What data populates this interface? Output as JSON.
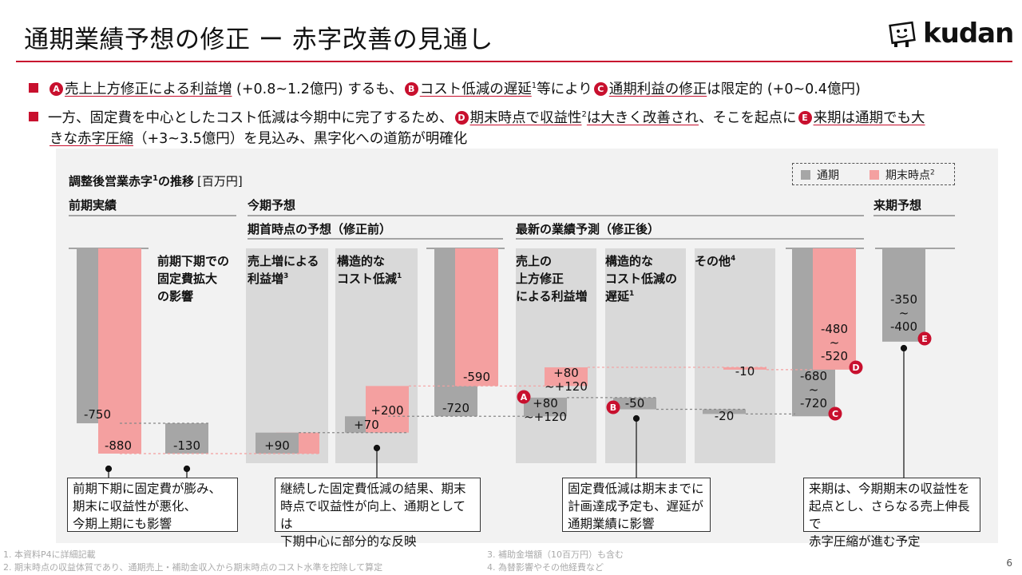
{
  "title": "通期業績予想の修正 ー 赤字改善の見通し",
  "logo": {
    "text": "kudan"
  },
  "bullets": [
    {
      "marker_a": "A",
      "part1": "売上上方修正による利益増",
      "part2": " (+0.8~1.2億円) するも、",
      "marker_b": "B",
      "part3": "コスト低減の遅延",
      "sup1": "1",
      "part4": "等により",
      "marker_c": "C",
      "part5": "通期利益の修正",
      "part6": "は限定的 (+0~0.4億円)"
    },
    {
      "part1": "一方、固定費を中心としたコスト低減は今期中に完了するため、",
      "marker_d": "D",
      "part2": "期末時点で収益性",
      "sup2": "2",
      "part3": "は大きく改善され",
      "part4": "、そこを起点に",
      "marker_e": "E",
      "part5": "来期は通期でも大",
      "part6": "きな赤字圧縮",
      "part7": "（+3~3.5億円）を見込み、黒字化への道筋が明確化"
    }
  ],
  "legend": {
    "full_year": "通期",
    "period_end": "期末時点",
    "period_end_sup": "2"
  },
  "colors": {
    "gray": "#a6a6a6",
    "pink": "#f4a0a0",
    "red": "#c8102e",
    "band": "#d9d9d9",
    "bg": "#f2f2f2"
  },
  "chart_data": {
    "type": "waterfall",
    "title": "調整後営業赤字",
    "title_sup": "1",
    "title_suffix": "の推移",
    "unit": "[百万円]",
    "ylim": [
      -900,
      0
    ],
    "sections": {
      "prev_actual": "前期実績",
      "current_forecast": "今期予想",
      "initial_forecast": "期首時点の予想（修正前）",
      "latest_forecast": "最新の業績予測（修正後）",
      "next_forecast": "来期予想"
    },
    "step_labels": {
      "fixed_cost": "前期下期での固定費拡大の影響",
      "sales_increase": "売上増による利益増",
      "sales_increase_sup": "3",
      "structural": "構造的なコスト低減",
      "structural_sup": "1",
      "upward": "売上の上方修正による利益増",
      "delay": "構造的なコスト低減の遅延",
      "delay_sup": "1",
      "other": "その他",
      "other_sup": "4"
    },
    "bars": [
      {
        "name": "prev-full-year",
        "series": "通期",
        "from": 0,
        "to": -750,
        "label": "-750"
      },
      {
        "name": "prev-period-end",
        "series": "期末時点",
        "from": 0,
        "to": -880,
        "label": "-880"
      },
      {
        "name": "fixed-cost-impact",
        "series": "通期",
        "from": -750,
        "to": -880,
        "label": "-130"
      },
      {
        "name": "sales-increase-pink",
        "series": "期末時点",
        "from": -880,
        "to": -790,
        "label": ""
      },
      {
        "name": "sales-increase-gray",
        "series": "通期",
        "from": -880,
        "to": -790,
        "label": "+90"
      },
      {
        "name": "structural-gray",
        "series": "通期",
        "from": -790,
        "to": -720,
        "label": "+70"
      },
      {
        "name": "structural-pink",
        "series": "期末時点",
        "from": -790,
        "to": -590,
        "label": "+200"
      },
      {
        "name": "initial-full-year",
        "series": "通期",
        "from": 0,
        "to": -720,
        "label": "-720"
      },
      {
        "name": "initial-period-end",
        "series": "期末時点",
        "from": 0,
        "to": -590,
        "label": "-590"
      },
      {
        "name": "upward-gray",
        "series": "通期",
        "from": -720,
        "to": -640,
        "label": "+80\n~+120"
      },
      {
        "name": "upward-pink",
        "series": "期末時点",
        "from": -590,
        "to": -510,
        "label": "+80\n~+120"
      },
      {
        "name": "delay-gray",
        "series": "通期",
        "from": -640,
        "to": -690,
        "label": "-50"
      },
      {
        "name": "other-gray",
        "series": "通期",
        "from": -690,
        "to": -710,
        "label": "-20"
      },
      {
        "name": "other-pink",
        "series": "期末時点",
        "from": -510,
        "to": -520,
        "label": "-10"
      },
      {
        "name": "latest-full-year",
        "series": "通期",
        "from": 0,
        "to": -720,
        "label": "-680\n~\n-720"
      },
      {
        "name": "latest-period-end",
        "series": "期末時点",
        "from": 0,
        "to": -520,
        "label": "-480\n~\n-520"
      },
      {
        "name": "next-full-year",
        "series": "通期",
        "from": 0,
        "to": -400,
        "label": "-350\n~\n-400"
      }
    ],
    "markers": {
      "a": "A",
      "b": "B",
      "c": "C",
      "d": "D",
      "e": "E"
    }
  },
  "notes": [
    {
      "line1": "前期下期に固定費が膨み、",
      "line2": "期末に収益性が悪化、",
      "line3": "今期上期にも影響"
    },
    {
      "line1": "継続した固定費低減の結果、期末",
      "line2": "時点で収益性が向上、通期としては",
      "line3": "下期中心に部分的な反映"
    },
    {
      "line1": "固定費低減は期末までに",
      "line2": "計画達成予定も、遅延が",
      "line3": "通期業績に影響"
    },
    {
      "line1": "来期は、今期期末の収益性を",
      "line2": "起点とし、さらなる売上伸長で",
      "line3": "赤字圧縮が進む予定"
    }
  ],
  "footnotes": {
    "f1": "1.  本資料P4に詳細記載",
    "f2": "2.  期末時点の収益体質であり、通期売上・補助金収入から期末時点のコスト水準を控除して算定",
    "f3": "3.  補助金増額（10百万円）も含む",
    "f4": "4.  為替影響やその他経費など"
  },
  "page_number": "6"
}
